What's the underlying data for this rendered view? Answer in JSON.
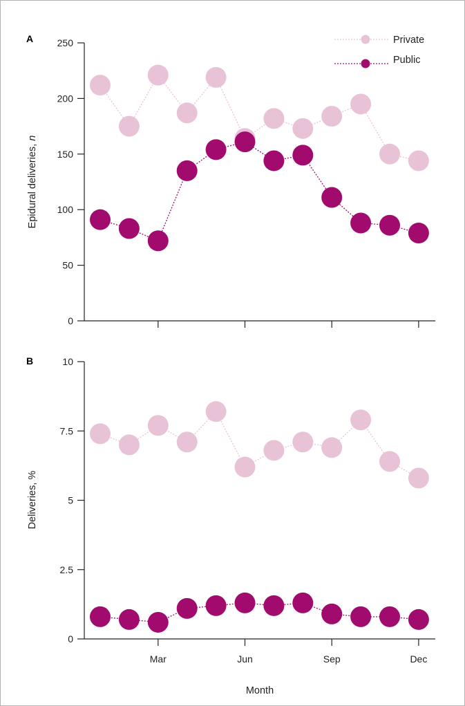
{
  "colors": {
    "private": "#e8c3d7",
    "public": "#a20b6e",
    "axis": "#222222"
  },
  "chart_data": [
    {
      "type": "line",
      "panel_label": "A",
      "title": "",
      "xlabel": "",
      "ylabel": "Epidural deliveries, ",
      "ylabel_italic": "n",
      "x": [
        "Jan",
        "Feb",
        "Mar",
        "Apr",
        "May",
        "Jun",
        "Jul",
        "Aug",
        "Sep",
        "Oct",
        "Nov",
        "Dec"
      ],
      "xtick_labels": [],
      "ylim": [
        0,
        250
      ],
      "yticks": [
        0,
        50,
        100,
        150,
        200,
        250
      ],
      "ytick_labels": [
        "0",
        "50",
        "100",
        "150",
        "200",
        "250"
      ],
      "grid": false,
      "legend": {
        "position": "top-right",
        "entries": [
          "Private",
          "Public"
        ]
      },
      "series": [
        {
          "name": "Private",
          "color": "#e8c3d7",
          "values": [
            212,
            175,
            221,
            187,
            219,
            164,
            182,
            173,
            184,
            195,
            150,
            144
          ]
        },
        {
          "name": "Public",
          "color": "#a20b6e",
          "values": [
            91,
            83,
            72,
            135,
            154,
            161,
            144,
            149,
            111,
            88,
            86,
            79
          ]
        }
      ]
    },
    {
      "type": "line",
      "panel_label": "B",
      "title": "",
      "xlabel": "Month",
      "ylabel": "Deliveries, %",
      "x": [
        "Jan",
        "Feb",
        "Mar",
        "Apr",
        "May",
        "Jun",
        "Jul",
        "Aug",
        "Sep",
        "Oct",
        "Nov",
        "Dec"
      ],
      "xtick_labels": [
        "Mar",
        "Jun",
        "Sep",
        "Dec"
      ],
      "ylim": [
        0,
        10
      ],
      "yticks": [
        0,
        2.5,
        5,
        7.5,
        10
      ],
      "ytick_labels": [
        "0",
        "2.5",
        "5",
        "7.5",
        "10"
      ],
      "grid": false,
      "series": [
        {
          "name": "Private",
          "color": "#e8c3d7",
          "values": [
            7.4,
            7.0,
            7.7,
            7.1,
            8.2,
            6.2,
            6.8,
            7.1,
            6.9,
            7.9,
            6.4,
            5.8
          ]
        },
        {
          "name": "Public",
          "color": "#a20b6e",
          "values": [
            0.8,
            0.7,
            0.6,
            1.1,
            1.2,
            1.3,
            1.2,
            1.3,
            0.9,
            0.8,
            0.8,
            0.7
          ]
        }
      ]
    }
  ]
}
